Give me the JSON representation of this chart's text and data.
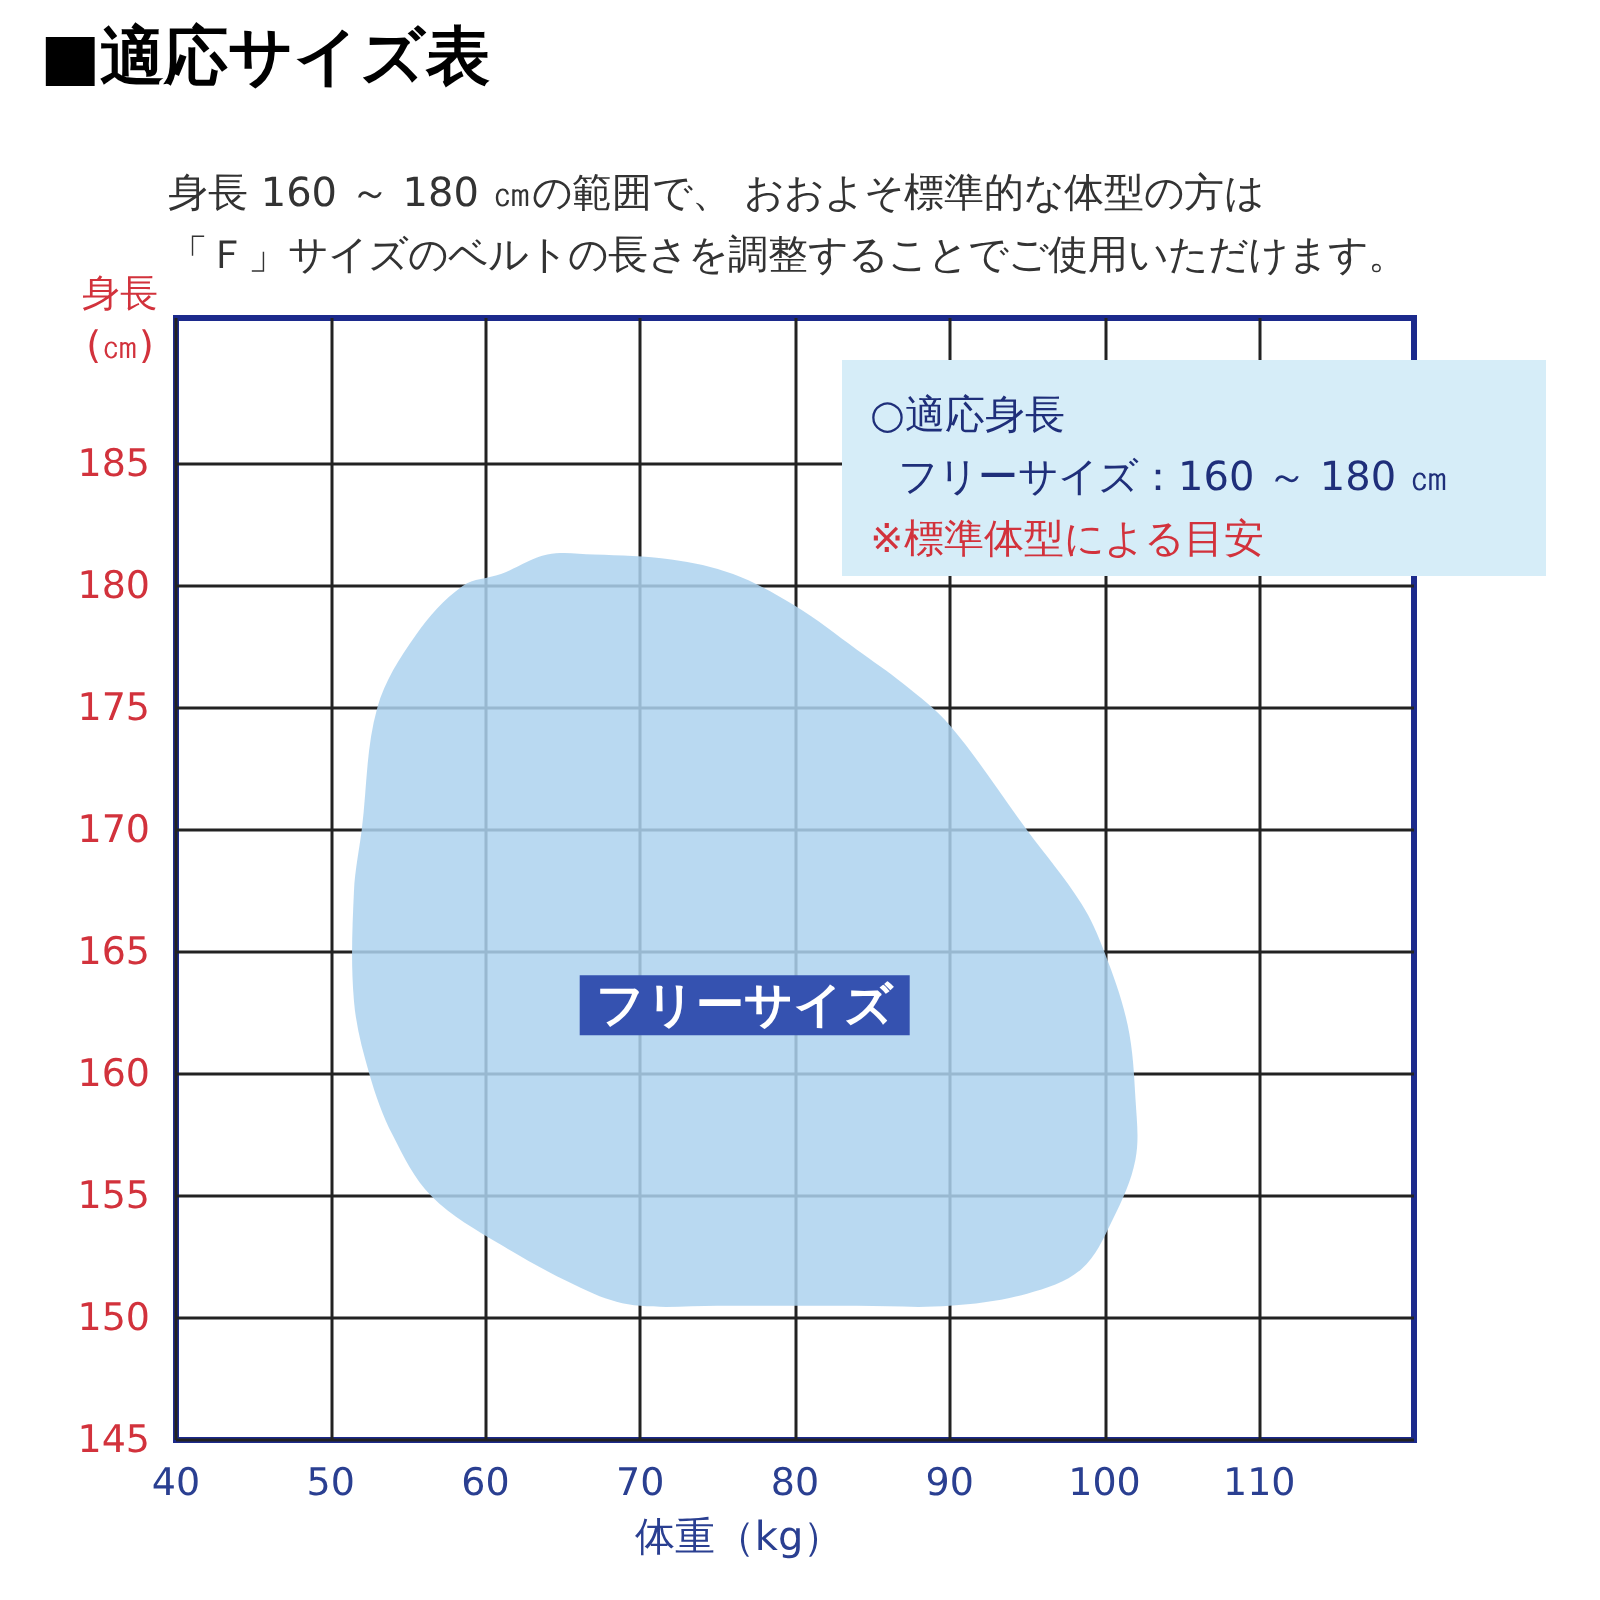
{
  "chart_data": {
    "type": "area",
    "title": "■適応サイズ表",
    "subtitle": "身長 160 ～ 180 ㎝の範囲で、 おおよそ標準的な体型の方は「Ｆ」サイズのベルトの長さを調整することでご使用いただけます。",
    "xlabel": "体重（kg）",
    "ylabel": "身長(㎝)",
    "annotations": [
      "○適応身長",
      "フリーサイズ：160 ～ 180 ㎝",
      "※標準体型による目安"
    ],
    "series": [
      {
        "name": "フリーサイズ",
        "color": "#add2ee",
        "x": [
          67,
          72,
          76,
          80,
          84,
          87,
          90,
          95,
          98.5,
          100,
          101.5,
          102,
          102,
          100.5,
          98.5,
          95,
          90,
          84,
          80,
          75,
          70,
          67,
          61,
          56.5,
          54,
          52.5,
          51.5,
          51.5,
          52,
          53,
          55.5,
          58.5,
          61,
          64
        ],
        "values": [
          181.3,
          181.1,
          180.5,
          179.2,
          177.4,
          176,
          174.3,
          170,
          167,
          165,
          162,
          159,
          156.5,
          154,
          152,
          151,
          150.5,
          150.5,
          150.5,
          150.5,
          150.5,
          151,
          153,
          155,
          157.5,
          160,
          163,
          167.5,
          170,
          175,
          178,
          180,
          180.5,
          181.3
        ]
      }
    ],
    "xlim": [
      40,
      120
    ],
    "xticks": [
      40,
      50,
      60,
      70,
      80,
      90,
      100,
      110
    ],
    "ylim": [
      145,
      191
    ],
    "yticks": [
      145,
      150,
      155,
      160,
      165,
      170,
      175,
      180,
      185
    ],
    "grid": true
  }
}
